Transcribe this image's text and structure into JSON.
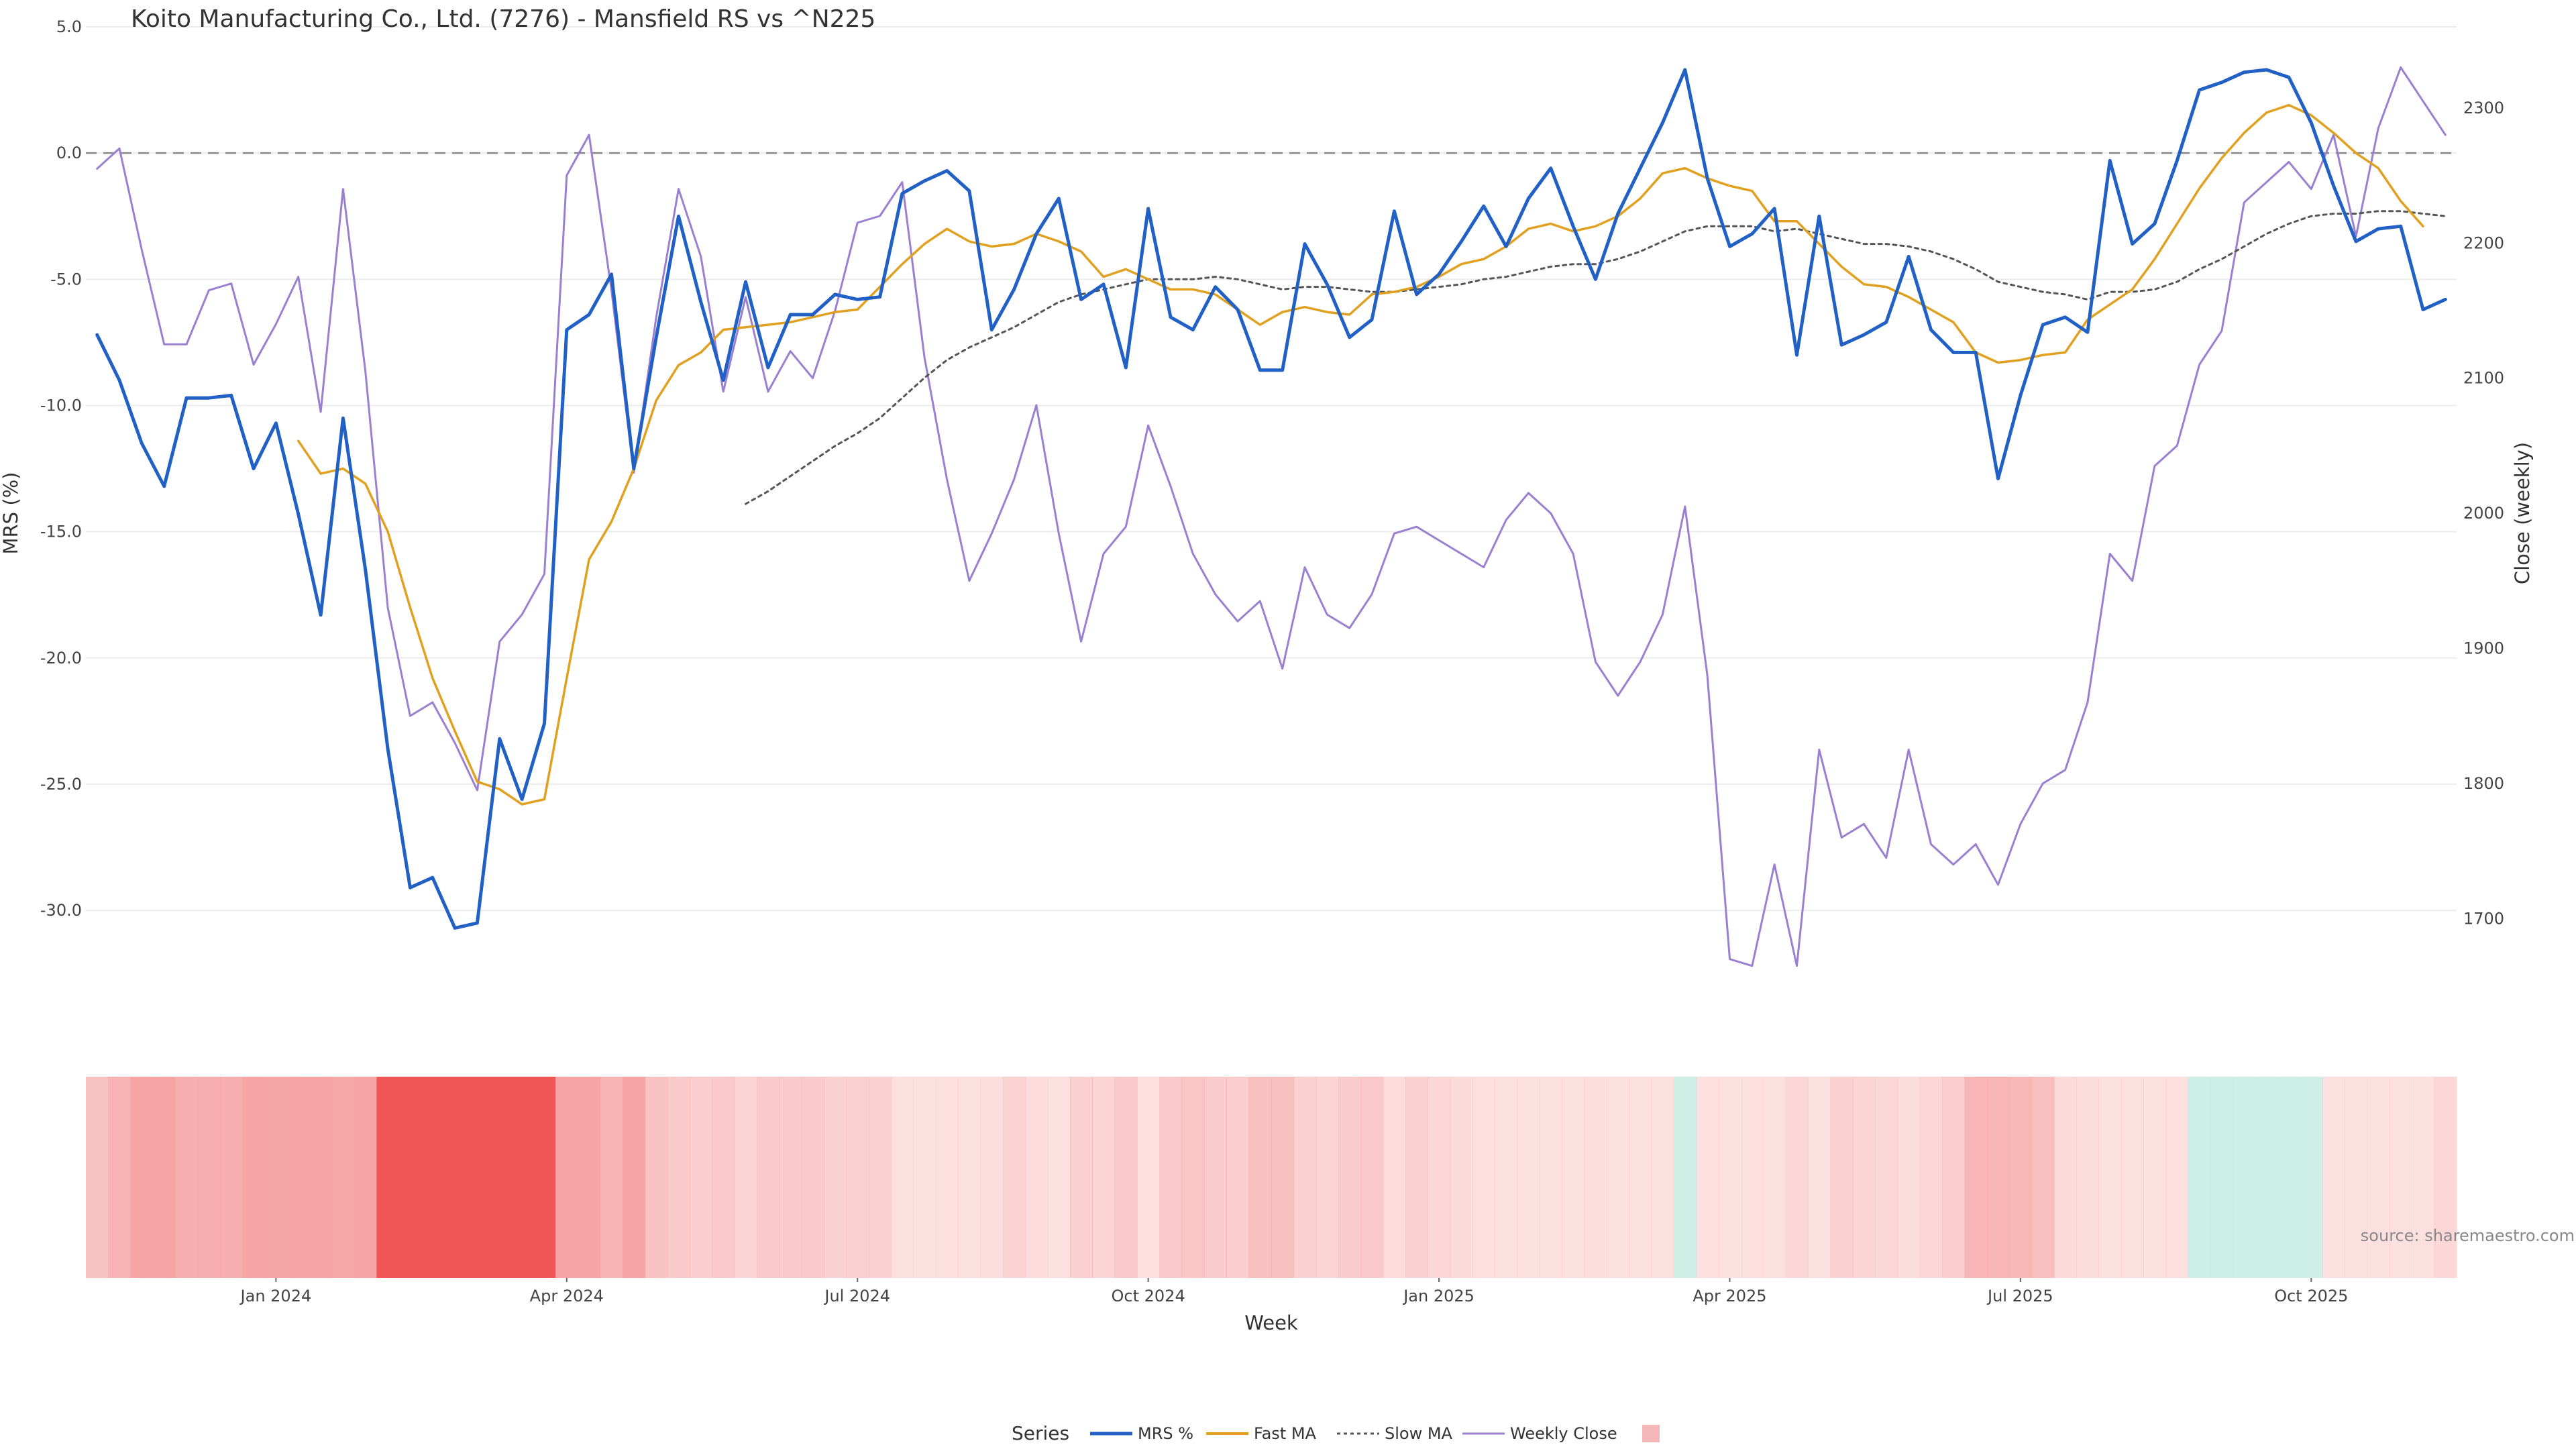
{
  "chart_data": {
    "type": "line",
    "title": "Koito Manufacturing Co., Ltd. (7276) - Mansfield RS vs ^N225",
    "xlabel": "Week",
    "ylabel_left": "MRS (%)",
    "ylabel_right": "Close (weekly)",
    "x_ticks": [
      "Jan 2024",
      "Apr 2024",
      "Jul 2024",
      "Oct 2024",
      "Jan 2025",
      "Apr 2025",
      "Jul 2025",
      "Oct 2025"
    ],
    "x_tick_weeks": [
      8,
      21,
      34,
      47,
      60,
      73,
      86,
      99
    ],
    "y_left_ticks": [
      "5.0",
      "0.0",
      "-5.0",
      "-10.0",
      "-15.0",
      "-20.0",
      "-25.0",
      "-30.0"
    ],
    "y_left_range": [
      -33.0,
      5.0
    ],
    "y_right_ticks": [
      "2300",
      "2200",
      "2100",
      "2000",
      "1900",
      "1800",
      "1700"
    ],
    "y_right_range": [
      1650,
      2360
    ],
    "zero_line": 0,
    "grid": true,
    "legend_title": "Series",
    "legend_position": "bottom-center",
    "colors": {
      "mrs": "#2160c4",
      "fast_ma": "#e0a020",
      "slow_ma": "#555555",
      "close": "#9b7fd0",
      "band_strong_negative": "#f05656",
      "band_negative": "#f6a4a4",
      "band_positive": "#c6ece0",
      "legend_swatch": "#f4b6b6"
    },
    "source_text": "source: sharemaestro.com",
    "series": [
      {
        "name": "MRS %",
        "axis": "left",
        "values": [
          -7.2,
          -9.0,
          -11.5,
          -13.2,
          -9.7,
          -9.7,
          -9.6,
          -12.5,
          -10.7,
          -14.3,
          -18.3,
          -10.5,
          -16.5,
          -23.6,
          -29.1,
          -28.7,
          -30.7,
          -30.5,
          -23.2,
          -25.6,
          -22.6,
          -7.0,
          -6.4,
          -4.8,
          -12.5,
          -7.3,
          -2.5,
          -5.9,
          -9.0,
          -5.1,
          -8.5,
          -6.4,
          -6.4,
          -5.6,
          -5.8,
          -5.7,
          -1.6,
          -1.1,
          -0.7,
          -1.5,
          -7.0,
          -5.4,
          -3.2,
          -1.8,
          -5.8,
          -5.2,
          -8.5,
          -2.2,
          -6.5,
          -7.0,
          -5.3,
          -6.2,
          -8.6,
          -8.6,
          -3.6,
          -5.2,
          -7.3,
          -6.6,
          -2.3,
          -5.6,
          -4.8,
          -3.5,
          -2.1,
          -3.7,
          -1.8,
          -0.6,
          -2.9,
          -5.0,
          -2.4,
          -0.6,
          1.2,
          3.3,
          -1.0,
          -3.7,
          -3.2,
          -2.2,
          -8.0,
          -2.5,
          -7.6,
          -7.2,
          -6.7,
          -4.1,
          -7.0,
          -7.9,
          -7.9,
          -12.9,
          -9.6,
          -6.8,
          -6.5,
          -7.1,
          -0.3,
          -3.6,
          -2.8,
          -0.3,
          2.5,
          2.8,
          3.2,
          3.3,
          3.0,
          1.2,
          -1.3,
          -3.5,
          -3.0,
          -2.9,
          -6.2,
          -5.8
        ]
      },
      {
        "name": "Fast MA",
        "axis": "left",
        "values": [
          null,
          null,
          null,
          null,
          null,
          null,
          null,
          null,
          null,
          -11.4,
          -12.7,
          -12.5,
          -13.1,
          -15.0,
          -18.0,
          -20.8,
          -22.9,
          -24.9,
          -25.2,
          -25.8,
          -25.6,
          -20.8,
          -16.1,
          -14.6,
          -12.5,
          -9.8,
          -8.4,
          -7.9,
          -7.0,
          -6.9,
          -6.8,
          -6.7,
          -6.5,
          -6.3,
          -6.2,
          -5.3,
          -4.4,
          -3.6,
          -3.0,
          -3.5,
          -3.7,
          -3.6,
          -3.2,
          -3.5,
          -3.9,
          -4.9,
          -4.6,
          -5.0,
          -5.4,
          -5.4,
          -5.6,
          -6.2,
          -6.8,
          -6.3,
          -6.1,
          -6.3,
          -6.4,
          -5.6,
          -5.5,
          -5.3,
          -4.9,
          -4.4,
          -4.2,
          -3.7,
          -3.0,
          -2.8,
          -3.1,
          -2.9,
          -2.5,
          -1.8,
          -0.8,
          -0.6,
          -1.0,
          -1.3,
          -1.5,
          -2.7,
          -2.7,
          -3.6,
          -4.5,
          -5.2,
          -5.3,
          -5.7,
          -6.2,
          -6.7,
          -7.9,
          -8.3,
          -8.2,
          -8.0,
          -7.9,
          -6.6,
          -6.0,
          -5.4,
          -4.2,
          -2.8,
          -1.4,
          -0.2,
          0.8,
          1.6,
          1.9,
          1.5,
          0.8,
          0.0,
          -0.6,
          -1.9,
          -2.9
        ]
      },
      {
        "name": "Slow MA",
        "axis": "left",
        "values": [
          null,
          null,
          null,
          null,
          null,
          null,
          null,
          null,
          null,
          null,
          null,
          null,
          null,
          null,
          null,
          null,
          null,
          null,
          null,
          null,
          null,
          null,
          null,
          null,
          null,
          null,
          null,
          null,
          null,
          -13.9,
          -13.4,
          -12.8,
          -12.2,
          -11.6,
          -11.1,
          -10.5,
          -9.7,
          -8.9,
          -8.2,
          -7.7,
          -7.3,
          -6.9,
          -6.4,
          -5.9,
          -5.6,
          -5.4,
          -5.2,
          -5.0,
          -5.0,
          -5.0,
          -4.9,
          -5.0,
          -5.2,
          -5.4,
          -5.3,
          -5.3,
          -5.4,
          -5.5,
          -5.5,
          -5.4,
          -5.3,
          -5.2,
          -5.0,
          -4.9,
          -4.7,
          -4.5,
          -4.4,
          -4.4,
          -4.2,
          -3.9,
          -3.5,
          -3.1,
          -2.9,
          -2.9,
          -2.9,
          -3.1,
          -3.0,
          -3.2,
          -3.4,
          -3.6,
          -3.6,
          -3.7,
          -3.9,
          -4.2,
          -4.6,
          -5.1,
          -5.3,
          -5.5,
          -5.6,
          -5.8,
          -5.5,
          -5.5,
          -5.4,
          -5.1,
          -4.6,
          -4.2,
          -3.7,
          -3.2,
          -2.8,
          -2.5,
          -2.4,
          -2.4,
          -2.3,
          -2.3,
          -2.4,
          -2.5
        ]
      },
      {
        "name": "Weekly Close",
        "axis": "right",
        "values": [
          2255,
          2270,
          2195,
          2125,
          2125,
          2165,
          2170,
          2110,
          2140,
          2175,
          2075,
          2240,
          2105,
          1930,
          1850,
          1860,
          1830,
          1795,
          1905,
          1925,
          1955,
          2250,
          2280,
          2165,
          2030,
          2145,
          2240,
          2190,
          2090,
          2160,
          2090,
          2120,
          2100,
          2150,
          2215,
          2220,
          2245,
          2115,
          2025,
          1950,
          1985,
          2025,
          2080,
          1985,
          1905,
          1970,
          1990,
          2065,
          2020,
          1970,
          1940,
          1920,
          1935,
          1885,
          1960,
          1925,
          1915,
          1940,
          1985,
          1990,
          1980,
          1970,
          1960,
          1995,
          2015,
          2000,
          1970,
          1890,
          1865,
          1890,
          1925,
          2005,
          1880,
          1670,
          1665,
          1740,
          1665,
          1825,
          1760,
          1770,
          1745,
          1825,
          1755,
          1740,
          1755,
          1725,
          1770,
          1800,
          1810,
          1860,
          1970,
          1950,
          2035,
          2050,
          2110,
          2135,
          2230,
          2245,
          2260,
          2240,
          2280,
          2205,
          2285,
          2330,
          2305,
          2280
        ]
      }
    ],
    "band_values": [
      -7.2,
      -9.0,
      -11.5,
      -13.2,
      -9.7,
      -9.7,
      -9.6,
      -12.5,
      -10.7,
      -14.3,
      -18.3,
      -10.5,
      -16.5,
      -23.6,
      -29.1,
      -28.7,
      -30.7,
      -30.5,
      -23.2,
      -25.6,
      -22.6,
      -18.0,
      -12.0,
      -9.0,
      -12.5,
      -7.3,
      -6.5,
      -5.9,
      -6.5,
      -5.1,
      -6.5,
      -6.4,
      -6.4,
      -5.6,
      -5.8,
      -5.7,
      -3.6,
      -1.8,
      -1.5,
      -2.0,
      -4.0,
      -5.4,
      -4.2,
      -3.5,
      -5.8,
      -5.2,
      -6.5,
      -3.2,
      -6.5,
      -7.0,
      -6.3,
      -6.2,
      -7.6,
      -7.6,
      -5.6,
      -5.2,
      -6.3,
      -6.6,
      -4.3,
      -5.6,
      -4.8,
      -4.5,
      -3.1,
      -3.7,
      -2.8,
      -2.6,
      -2.9,
      -4.0,
      -2.4,
      -1.6,
      -0.6,
      1.3,
      -0.6,
      -1.7,
      -2.2,
      -2.9,
      -5.0,
      -3.5,
      -5.6,
      -5.2,
      -4.7,
      -4.1,
      -5.0,
      -5.9,
      -8.9,
      -8.9,
      -8.6,
      -7.8,
      -4.5,
      -4.1,
      -3.3,
      -3.6,
      -2.8,
      -2.3,
      1.5,
      1.8,
      2.2,
      2.3,
      2.0,
      1.2,
      -1.3,
      -2.5,
      -2.0,
      -2.9,
      -3.6,
      -4.8
    ]
  }
}
